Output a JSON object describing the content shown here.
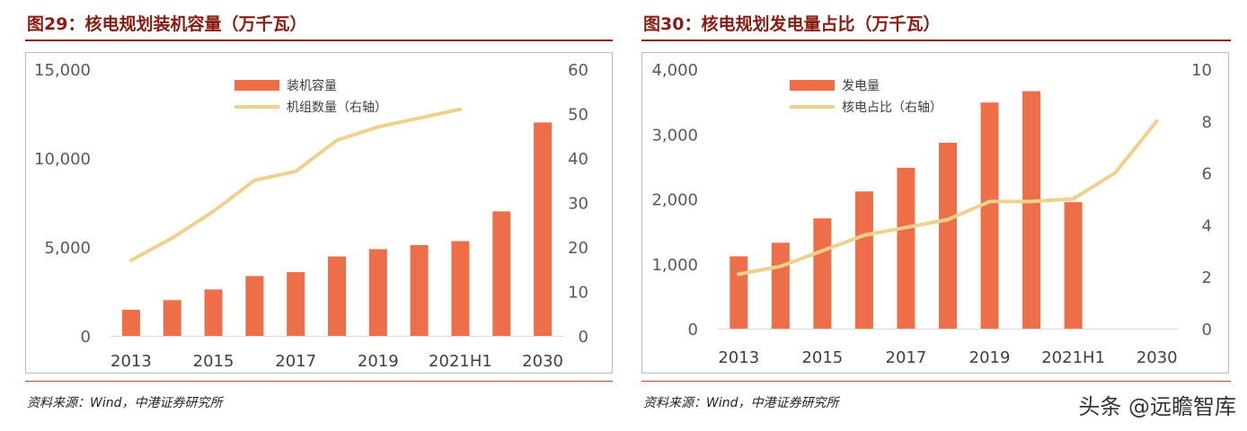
{
  "left": {
    "title": "图29：核电规划装机容量（万千瓦）",
    "source": "资料来源：Wind，中港证券研究所",
    "chart_data": {
      "type": "bar",
      "categories": [
        "2013",
        "2014",
        "2015",
        "2016",
        "2017",
        "2018",
        "2019",
        "2020",
        "2021H1",
        "2025",
        "2030"
      ],
      "x_tick_labels": [
        "2013",
        "",
        "2015",
        "",
        "2017",
        "",
        "2019",
        "",
        "2021H1",
        "",
        "2030"
      ],
      "series": [
        {
          "name": "装机容量",
          "type": "bar",
          "axis": "left",
          "color": "#ed6f4a",
          "values": [
            1466,
            2008,
            2608,
            3364,
            3582,
            4466,
            4875,
            5103,
            5328,
            7000,
            12000
          ]
        },
        {
          "name": "机组数量（右轴）",
          "type": "line",
          "axis": "right",
          "color": "#eed28c",
          "values": [
            17,
            22,
            28,
            35,
            37,
            44,
            47,
            49,
            51,
            null,
            null
          ]
        }
      ],
      "y_left": {
        "min": 0,
        "max": 15000,
        "ticks": [
          0,
          5000,
          10000,
          15000
        ],
        "tick_labels": [
          "0",
          "5,000",
          "10,000",
          "15,000"
        ]
      },
      "y_right": {
        "min": 0,
        "max": 60,
        "ticks": [
          0,
          10,
          20,
          30,
          40,
          50,
          60
        ],
        "tick_labels": [
          "0",
          "10",
          "20",
          "30",
          "40",
          "50",
          "60"
        ]
      },
      "grid": false,
      "legend_position": "top-center"
    }
  },
  "right": {
    "title": "图30：核电规划发电量占比（万千瓦）",
    "source": "资料来源：Wind，中港证券研究所",
    "chart_data": {
      "type": "bar",
      "categories": [
        "2013",
        "2014",
        "2015",
        "2016",
        "2017",
        "2018",
        "2019",
        "2020",
        "2021H1",
        "2025",
        "2030"
      ],
      "x_tick_labels": [
        "2013",
        "",
        "2015",
        "",
        "2017",
        "",
        "2019",
        "",
        "2021H1",
        "",
        "2030"
      ],
      "series": [
        {
          "name": "发电量",
          "type": "bar",
          "axis": "left",
          "color": "#ed6f4a",
          "values": [
            1115,
            1325,
            1700,
            2115,
            2480,
            2865,
            3485,
            3660,
            1950,
            null,
            null
          ]
        },
        {
          "name": "核电占比（右轴）",
          "type": "line",
          "axis": "right",
          "color": "#eed28c",
          "values": [
            2.1,
            2.4,
            3.0,
            3.6,
            3.9,
            4.2,
            4.9,
            4.9,
            5.0,
            6.0,
            8.0
          ]
        }
      ],
      "y_left": {
        "min": 0,
        "max": 4000,
        "ticks": [
          0,
          1000,
          2000,
          3000,
          4000
        ],
        "tick_labels": [
          "0",
          "1,000",
          "2,000",
          "3,000",
          "4,000"
        ]
      },
      "y_right": {
        "min": 0,
        "max": 10,
        "ticks": [
          0,
          2,
          4,
          6,
          8,
          10
        ],
        "tick_labels": [
          "0",
          "2",
          "4",
          "6",
          "8",
          "10"
        ]
      },
      "grid": false,
      "legend_position": "top-center"
    }
  },
  "watermark": "头条 @远瞻智库"
}
